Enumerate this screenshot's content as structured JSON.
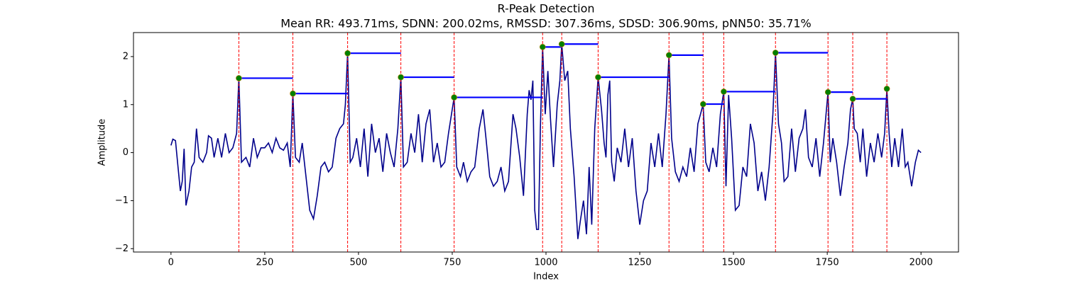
{
  "chart_data": {
    "type": "line",
    "title": "R-Peak Detection",
    "subtitle": "Mean RR: 493.71ms, SDNN: 200.02ms, RMSSD: 307.36ms, SDSD: 306.90ms, pNN50: 35.71%",
    "xlabel": "Index",
    "ylabel": "Amplitude",
    "xlim": [
      -100,
      2100
    ],
    "ylim": [
      -2.07,
      2.5
    ],
    "xticks": [
      0,
      250,
      500,
      750,
      1000,
      1250,
      1500,
      1750,
      2000
    ],
    "yticks": [
      {
        "value": -2,
        "label": "−2"
      },
      {
        "value": -1,
        "label": "−1"
      },
      0,
      1,
      2
    ],
    "peak_line_color": "red",
    "interval_line_color": "blue",
    "series": [
      {
        "type": "line",
        "color": "#00008b",
        "x": [
          0,
          5,
          12,
          20,
          25,
          30,
          35,
          40,
          48,
          55,
          62,
          68,
          75,
          85,
          95,
          100,
          108,
          115,
          125,
          135,
          145,
          155,
          165,
          175,
          181,
          188,
          200,
          210,
          220,
          230,
          240,
          250,
          260,
          270,
          280,
          290,
          300,
          310,
          318,
          325,
          332,
          342,
          350,
          360,
          370,
          380,
          390,
          400,
          410,
          420,
          430,
          440,
          450,
          460,
          465,
          471,
          478,
          485,
          495,
          505,
          515,
          525,
          535,
          545,
          555,
          565,
          575,
          585,
          595,
          605,
          613,
          620,
          630,
          640,
          650,
          660,
          670,
          680,
          690,
          700,
          710,
          720,
          730,
          740,
          755,
          762,
          772,
          780,
          790,
          800,
          810,
          822,
          832,
          840,
          850,
          860,
          870,
          880,
          890,
          900,
          912,
          920,
          930,
          940,
          950,
          955,
          960,
          965,
          970,
          975,
          980,
          985,
          991,
          998,
          1005,
          1012,
          1020,
          1030,
          1037,
          1042,
          1050,
          1058,
          1065,
          1075,
          1085,
          1092,
          1100,
          1108,
          1115,
          1122,
          1130,
          1139,
          1148,
          1155,
          1160,
          1165,
          1170,
          1175,
          1182,
          1190,
          1200,
          1210,
          1220,
          1230,
          1240,
          1250,
          1260,
          1270,
          1280,
          1290,
          1300,
          1310,
          1320,
          1328,
          1335,
          1345,
          1355,
          1365,
          1375,
          1385,
          1395,
          1405,
          1412,
          1419,
          1426,
          1435,
          1445,
          1455,
          1465,
          1474,
          1480,
          1487,
          1495,
          1505,
          1515,
          1525,
          1535,
          1545,
          1555,
          1565,
          1575,
          1585,
          1595,
          1605,
          1612,
          1620,
          1628,
          1635,
          1645,
          1655,
          1665,
          1675,
          1685,
          1692,
          1700,
          1710,
          1720,
          1730,
          1740,
          1752,
          1758,
          1765,
          1775,
          1785,
          1795,
          1805,
          1812,
          1818,
          1822,
          1830,
          1838,
          1845,
          1855,
          1865,
          1875,
          1885,
          1895,
          1903,
          1909,
          1915,
          1922,
          1930,
          1940,
          1950,
          1958,
          1965,
          1975,
          1985,
          1993,
          2000
        ],
        "values": [
          0.15,
          0.28,
          0.25,
          -0.4,
          -0.8,
          -0.6,
          0.08,
          -1.1,
          -0.8,
          -0.3,
          -0.2,
          0.5,
          -0.1,
          -0.2,
          0.0,
          0.35,
          0.3,
          -0.1,
          0.3,
          -0.1,
          0.4,
          0.0,
          0.1,
          0.4,
          1.55,
          -0.2,
          -0.1,
          -0.3,
          0.3,
          -0.1,
          0.1,
          0.1,
          0.2,
          0.0,
          0.3,
          0.1,
          0.05,
          0.2,
          -0.3,
          1.23,
          -0.1,
          -0.2,
          0.2,
          -0.5,
          -1.2,
          -1.38,
          -0.9,
          -0.3,
          -0.2,
          -0.4,
          -0.3,
          0.3,
          0.5,
          0.6,
          1.0,
          2.07,
          -0.2,
          -0.1,
          0.3,
          -0.3,
          0.5,
          -0.5,
          0.6,
          0.0,
          0.3,
          -0.4,
          0.4,
          0.0,
          -0.3,
          0.5,
          1.57,
          -0.3,
          -0.2,
          0.4,
          0.0,
          0.8,
          -0.2,
          0.6,
          0.9,
          -0.2,
          0.2,
          -0.3,
          -0.2,
          0.4,
          1.15,
          -0.3,
          -0.5,
          -0.2,
          -0.6,
          -0.4,
          -0.3,
          0.5,
          0.9,
          0.3,
          -0.5,
          -0.7,
          -0.6,
          -0.3,
          -0.8,
          -0.6,
          0.8,
          0.5,
          -0.1,
          -0.9,
          0.8,
          1.3,
          1.1,
          1.5,
          -1.2,
          -1.6,
          -1.6,
          0.5,
          2.2,
          0.8,
          1.7,
          0.7,
          -0.3,
          1.0,
          1.5,
          2.26,
          1.5,
          1.7,
          0.5,
          -0.5,
          -1.8,
          -1.4,
          -1.0,
          -1.7,
          -0.3,
          -1.5,
          0.5,
          1.57,
          0.9,
          0.2,
          -0.1,
          1.2,
          1.5,
          -0.2,
          -0.6,
          0.1,
          -0.2,
          0.5,
          -0.3,
          0.3,
          -0.8,
          -1.5,
          -1.0,
          -0.8,
          0.2,
          -0.3,
          0.4,
          -0.3,
          0.8,
          2.03,
          0.3,
          -0.4,
          -0.6,
          -0.3,
          -0.5,
          0.1,
          -0.4,
          0.6,
          0.8,
          1.01,
          -0.2,
          -0.4,
          0.1,
          -0.3,
          0.8,
          1.27,
          -0.7,
          1.2,
          0.3,
          -1.2,
          -1.1,
          -0.3,
          -0.5,
          0.6,
          0.2,
          -0.8,
          -0.4,
          -1.0,
          -0.3,
          0.8,
          2.08,
          0.6,
          0.2,
          -0.6,
          -0.5,
          0.5,
          -0.4,
          0.3,
          0.5,
          0.9,
          -0.1,
          -0.3,
          0.3,
          -0.5,
          0.2,
          1.26,
          -0.2,
          0.3,
          -0.2,
          -0.9,
          -0.3,
          0.2,
          0.9,
          1.12,
          0.5,
          0.4,
          -0.2,
          0.5,
          -0.5,
          0.2,
          -0.2,
          0.4,
          -0.1,
          0.4,
          1.33,
          0.4,
          -0.3,
          0.3,
          -0.3,
          0.5,
          -0.3,
          -0.2,
          -0.7,
          -0.2,
          0.05,
          0.0
        ]
      },
      {
        "type": "scatter",
        "color": "#008000",
        "x": [
          181,
          325,
          471,
          613,
          755,
          991,
          1042,
          1139,
          1328,
          1419,
          1474,
          1612,
          1752,
          1818,
          1909
        ],
        "values": [
          1.55,
          1.23,
          2.07,
          1.57,
          1.15,
          2.2,
          2.26,
          1.57,
          2.03,
          1.01,
          1.27,
          2.08,
          1.26,
          1.12,
          1.33
        ]
      }
    ]
  }
}
